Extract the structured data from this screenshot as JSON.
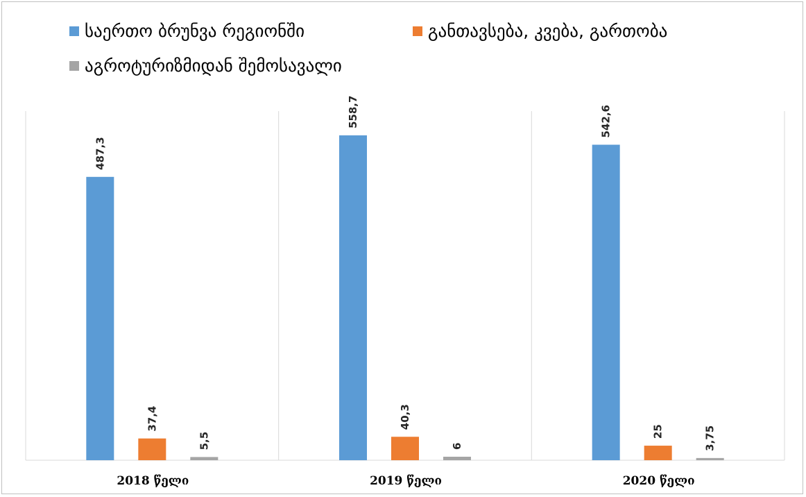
{
  "chart_data": {
    "type": "bar",
    "categories": [
      "2018 წელი",
      "2019 წელი",
      "2020 წელი"
    ],
    "series": [
      {
        "name": "საერთო ბრუნვა  რეგიონში",
        "values": [
          487.3,
          558.7,
          542.6
        ],
        "labels": [
          "487,3",
          "558,7",
          "542,6"
        ],
        "color": "#5b9bd5"
      },
      {
        "name": "განთავსება, კვება, გართობა",
        "values": [
          37.4,
          40.3,
          25
        ],
        "labels": [
          "37,4",
          "40,3",
          "25"
        ],
        "color": "#ed7d31"
      },
      {
        "name": "აგროტურიზმიდან შემოსავალი",
        "values": [
          5.5,
          6,
          3.75
        ],
        "labels": [
          "5,5",
          "6",
          "3,75"
        ],
        "color": "#a5a5a5"
      }
    ],
    "ylim": [
      0,
      600
    ],
    "grid": "vertical category separators",
    "legend": "top"
  }
}
